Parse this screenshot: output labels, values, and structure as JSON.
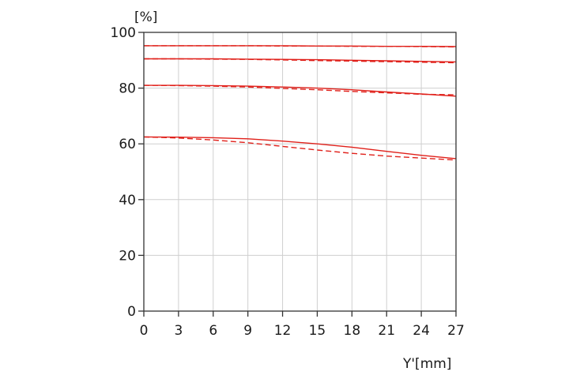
{
  "chart_data": {
    "type": "line",
    "title": "",
    "xlabel": "Y'[mm]",
    "ylabel": "[%]",
    "xlim": [
      0,
      27
    ],
    "ylim": [
      0,
      100
    ],
    "xticks": [
      0,
      3,
      6,
      9,
      12,
      15,
      18,
      21,
      24,
      27
    ],
    "yticks": [
      0,
      20,
      40,
      60,
      80,
      100
    ],
    "grid": true,
    "series_color": "#e0201a",
    "series": [
      {
        "style": "solid",
        "x": [
          0,
          3,
          6,
          9,
          12,
          15,
          18,
          21,
          24,
          27
        ],
        "y": [
          95.2,
          95.2,
          95.2,
          95.2,
          95.2,
          95.1,
          95.1,
          95.0,
          95.0,
          94.9
        ]
      },
      {
        "style": "dashed",
        "x": [
          0,
          3,
          6,
          9,
          12,
          15,
          18,
          21,
          24,
          27
        ],
        "y": [
          95.2,
          95.2,
          95.2,
          95.2,
          95.1,
          95.1,
          95.0,
          95.0,
          94.9,
          94.8
        ]
      },
      {
        "style": "solid",
        "x": [
          0,
          3,
          6,
          9,
          12,
          15,
          18,
          21,
          24,
          27
        ],
        "y": [
          90.5,
          90.5,
          90.5,
          90.4,
          90.3,
          90.2,
          90.0,
          89.8,
          89.6,
          89.4
        ]
      },
      {
        "style": "dashed",
        "x": [
          0,
          3,
          6,
          9,
          12,
          15,
          18,
          21,
          24,
          27
        ],
        "y": [
          90.5,
          90.5,
          90.4,
          90.3,
          90.1,
          89.9,
          89.7,
          89.5,
          89.3,
          89.1
        ]
      },
      {
        "style": "solid",
        "x": [
          0,
          3,
          6,
          9,
          12,
          15,
          18,
          21,
          24,
          27
        ],
        "y": [
          81.0,
          81.0,
          80.9,
          80.7,
          80.4,
          80.0,
          79.4,
          78.6,
          77.9,
          77.1
        ]
      },
      {
        "style": "dashed",
        "x": [
          0,
          3,
          6,
          9,
          12,
          15,
          18,
          21,
          24,
          27
        ],
        "y": [
          81.0,
          80.9,
          80.7,
          80.4,
          79.9,
          79.4,
          78.8,
          78.3,
          77.8,
          77.6
        ]
      },
      {
        "style": "solid",
        "x": [
          0,
          3,
          6,
          9,
          12,
          15,
          18,
          21,
          24,
          27
        ],
        "y": [
          62.5,
          62.4,
          62.2,
          61.8,
          61.0,
          60.0,
          58.8,
          57.3,
          55.9,
          54.7
        ]
      },
      {
        "style": "dashed",
        "x": [
          0,
          3,
          6,
          9,
          12,
          15,
          18,
          21,
          24,
          27
        ],
        "y": [
          62.5,
          62.1,
          61.4,
          60.4,
          59.1,
          57.8,
          56.6,
          55.6,
          54.9,
          54.2
        ]
      }
    ]
  }
}
